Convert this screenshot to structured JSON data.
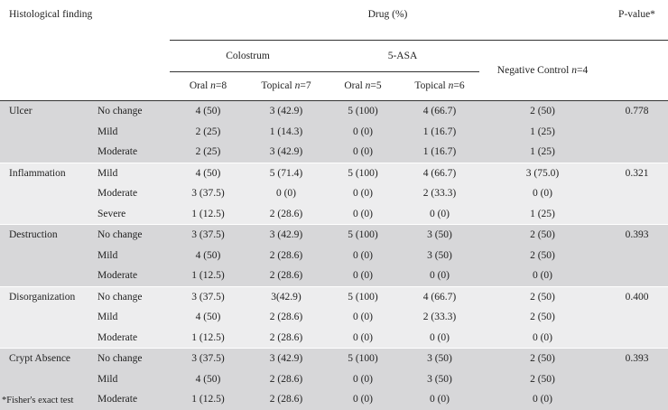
{
  "header": {
    "histological_finding": "Histological finding",
    "drug": "Drug (%)",
    "p_value": "P-value*",
    "colostrum": "Colostrum",
    "five_asa": "5-ASA",
    "negative_control": "Negative Control ",
    "negative_control_n": "n",
    "negative_control_eq": "=4",
    "col_oral_colostrum": "Oral ",
    "col_oral_colostrum_n": "n",
    "col_oral_colostrum_eq": "=8",
    "col_topical_colostrum": "Topical ",
    "col_topical_colostrum_n": "n",
    "col_topical_colostrum_eq": "=7",
    "col_oral_asa": "Oral ",
    "col_oral_asa_n": "n",
    "col_oral_asa_eq": "=5",
    "col_topical_asa": "Topical ",
    "col_topical_asa_n": "n",
    "col_topical_asa_eq": "=6"
  },
  "groups": [
    {
      "name": "Ulcer",
      "p": "0.778",
      "rows": [
        {
          "grade": "No change",
          "cells": [
            "4 (50)",
            "3 (42.9)",
            "5 (100)",
            "4 (66.7)",
            "2 (50)"
          ]
        },
        {
          "grade": "Mild",
          "cells": [
            "2 (25)",
            "1 (14.3)",
            "0 (0)",
            "1 (16.7)",
            "1 (25)"
          ]
        },
        {
          "grade": "Moderate",
          "cells": [
            "2 (25)",
            "3 (42.9)",
            "0 (0)",
            "1 (16.7)",
            "1 (25)"
          ]
        }
      ]
    },
    {
      "name": "Inflammation",
      "p": "0.321",
      "rows": [
        {
          "grade": "Mild",
          "cells": [
            "4 (50)",
            "5 (71.4)",
            "5 (100)",
            "4 (66.7)",
            "3 (75.0)"
          ]
        },
        {
          "grade": "Moderate",
          "cells": [
            "3 (37.5)",
            "0 (0)",
            "0 (0)",
            "2 (33.3)",
            "0 (0)"
          ]
        },
        {
          "grade": "Severe",
          "cells": [
            "1 (12.5)",
            "2 (28.6)",
            "0 (0)",
            "0 (0)",
            "1 (25)"
          ]
        }
      ]
    },
    {
      "name": "Destruction",
      "p": "0.393",
      "rows": [
        {
          "grade": "No change",
          "cells": [
            "3 (37.5)",
            "3 (42.9)",
            "5 (100)",
            "3 (50)",
            "2 (50)"
          ]
        },
        {
          "grade": "Mild",
          "cells": [
            "4 (50)",
            "2 (28.6)",
            "0 (0)",
            "3 (50)",
            "2 (50)"
          ]
        },
        {
          "grade": "Moderate",
          "cells": [
            "1 (12.5)",
            "2 (28.6)",
            "0 (0)",
            "0 (0)",
            "0 (0)"
          ]
        }
      ]
    },
    {
      "name": "Disorganization",
      "p": "0.400",
      "rows": [
        {
          "grade": "No change",
          "cells": [
            "3 (37.5)",
            "3(42.9)",
            "5 (100)",
            "4 (66.7)",
            "2 (50)"
          ]
        },
        {
          "grade": "Mild",
          "cells": [
            "4 (50)",
            "2 (28.6)",
            "0 (0)",
            "2 (33.3)",
            "2 (50)"
          ]
        },
        {
          "grade": "Moderate",
          "cells": [
            "1 (12.5)",
            "2 (28.6)",
            "0 (0)",
            "0 (0)",
            "0 (0)"
          ]
        }
      ]
    },
    {
      "name": "Crypt Absence",
      "p": "0.393",
      "rows": [
        {
          "grade": "No change",
          "cells": [
            "3 (37.5)",
            "3 (42.9)",
            "5 (100)",
            "3 (50)",
            "2 (50)"
          ]
        },
        {
          "grade": "Mild",
          "cells": [
            "4 (50)",
            "2 (28.6)",
            "0 (0)",
            "3 (50)",
            "2 (50)"
          ]
        },
        {
          "grade": "Moderate",
          "cells": [
            "1 (12.5)",
            "2 (28.6)",
            "0 (0)",
            "0 (0)",
            "0 (0)"
          ]
        }
      ]
    }
  ],
  "footnote": "*Fisher's exact test"
}
